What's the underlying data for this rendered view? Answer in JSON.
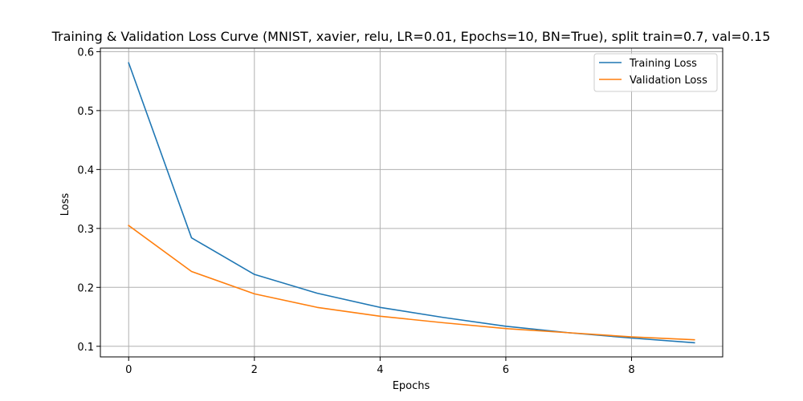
{
  "chart_data": {
    "type": "line",
    "title": "Training & Validation Loss Curve (MNIST, xavier, relu, LR=0.01, Epochs=10, BN=True), split train=0.7, val=0.15",
    "xlabel": "Epochs",
    "ylabel": "Loss",
    "xlim": [
      -0.45,
      9.45
    ],
    "ylim": [
      0.082,
      0.606
    ],
    "xticks": [
      0,
      2,
      4,
      6,
      8
    ],
    "yticks": [
      0.1,
      0.2,
      0.3,
      0.4,
      0.5,
      0.6
    ],
    "xtick_labels": [
      "0",
      "2",
      "4",
      "6",
      "8"
    ],
    "ytick_labels": [
      "0.1",
      "0.2",
      "0.3",
      "0.4",
      "0.5",
      "0.6"
    ],
    "grid": true,
    "legend_position": "top-right",
    "x": [
      0,
      1,
      2,
      3,
      4,
      5,
      6,
      7,
      8,
      9
    ],
    "series": [
      {
        "name": "Training Loss",
        "color": "#1f77b4",
        "values": [
          0.581,
          0.284,
          0.222,
          0.19,
          0.166,
          0.149,
          0.134,
          0.123,
          0.114,
          0.106
        ]
      },
      {
        "name": "Validation Loss",
        "color": "#ff7f0e",
        "values": [
          0.305,
          0.227,
          0.189,
          0.166,
          0.151,
          0.14,
          0.13,
          0.123,
          0.116,
          0.111
        ]
      }
    ]
  }
}
